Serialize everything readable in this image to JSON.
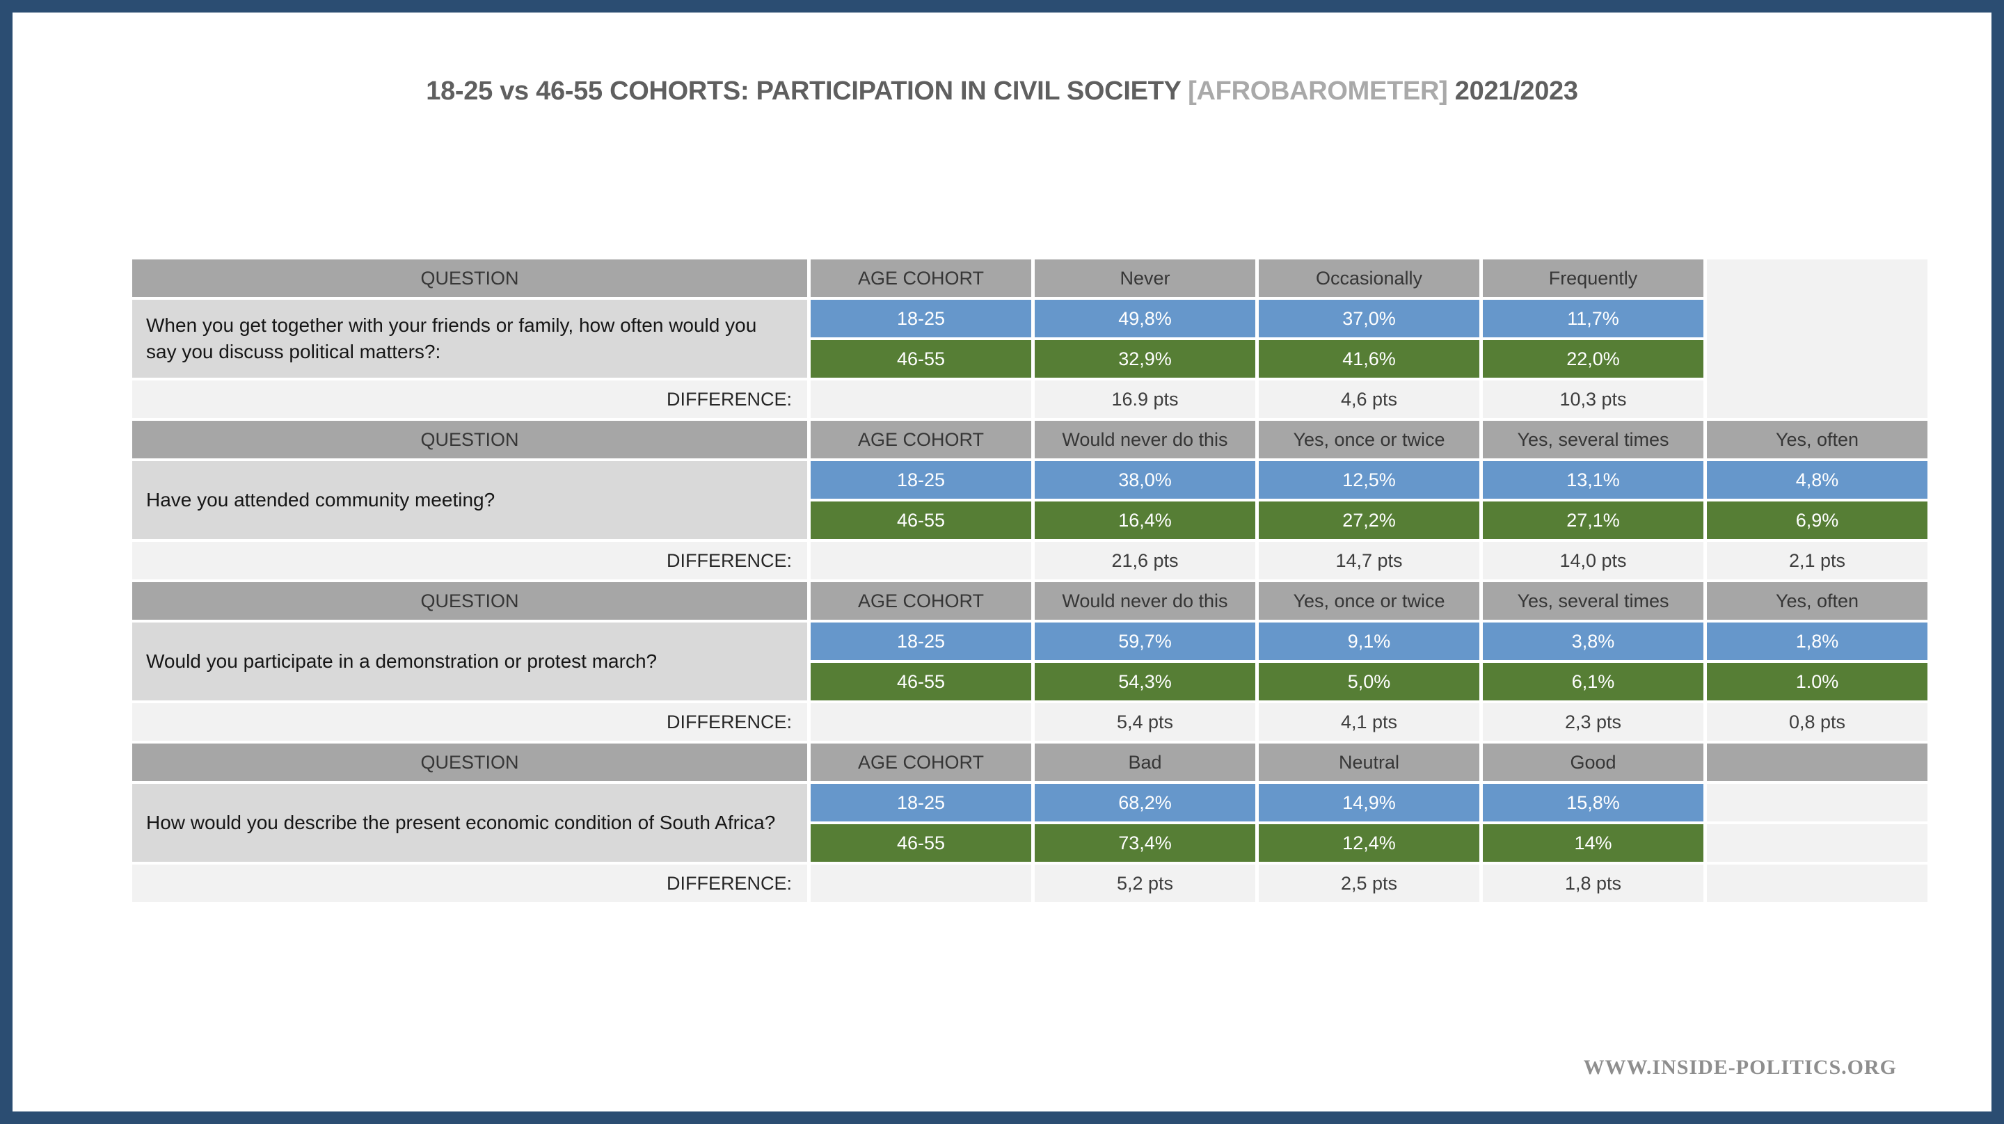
{
  "title": {
    "main": "18-25 vs 46-55 COHORTS: PARTICIPATION IN CIVIL SOCIETY",
    "source": "[AFROBAROMETER]",
    "year": "2021/2023"
  },
  "watermark": "WWW.INSIDE-POLITICS.ORG",
  "labels": {
    "question": "QUESTION",
    "age_cohort": "AGE COHORT",
    "difference": "DIFFERENCE:"
  },
  "colors": {
    "frame_navy": "#2b4d72",
    "header_gray": "#a6a6a6",
    "question_gray": "#d9d9d9",
    "cohort_18_25_blue": "#6697cb",
    "cohort_46_55_green": "#567e35",
    "difference_light": "#f2f2f2"
  },
  "blocks": [
    {
      "question": "When you get together with your friends or family, how often would you say you discuss political matters?:",
      "response_headers": [
        "Never",
        "Occasionally",
        "Frequently"
      ],
      "cohort1": {
        "label": "18-25",
        "values": [
          "49,8%",
          "37,0%",
          "11,7%"
        ]
      },
      "cohort2": {
        "label": "46-55",
        "values": [
          "32,9%",
          "41,6%",
          "22,0%"
        ]
      },
      "difference": [
        "16.9 pts",
        "4,6 pts",
        "10,3 pts"
      ]
    },
    {
      "question": "Have you attended community meeting?",
      "response_headers": [
        "Would never do this",
        "Yes, once or twice",
        "Yes, several times",
        "Yes, often"
      ],
      "cohort1": {
        "label": "18-25",
        "values": [
          "38,0%",
          "12,5%",
          "13,1%",
          "4,8%"
        ]
      },
      "cohort2": {
        "label": "46-55",
        "values": [
          "16,4%",
          "27,2%",
          "27,1%",
          "6,9%"
        ]
      },
      "difference": [
        "21,6 pts",
        "14,7 pts",
        "14,0 pts",
        "2,1 pts"
      ]
    },
    {
      "question": "Would you participate in a demonstration or protest march?",
      "response_headers": [
        "Would never do this",
        "Yes, once or twice",
        "Yes, several times",
        "Yes, often"
      ],
      "cohort1": {
        "label": "18-25",
        "values": [
          "59,7%",
          "9,1%",
          "3,8%",
          "1,8%"
        ]
      },
      "cohort2": {
        "label": "46-55",
        "values": [
          "54,3%",
          "5,0%",
          "6,1%",
          "1.0%"
        ]
      },
      "difference": [
        "5,4 pts",
        "4,1 pts",
        "2,3 pts",
        "0,8 pts"
      ]
    },
    {
      "question": "How would you describe the present economic condition of South Africa?",
      "response_headers": [
        "Bad",
        "Neutral",
        "Good"
      ],
      "cohort1": {
        "label": "18-25",
        "values": [
          "68,2%",
          "14,9%",
          "15,8%"
        ]
      },
      "cohort2": {
        "label": "46-55",
        "values": [
          "73,4%",
          "12,4%",
          "14%"
        ]
      },
      "difference": [
        "5,2 pts",
        "2,5 pts",
        "1,8 pts"
      ]
    }
  ],
  "chart_data": {
    "type": "table",
    "title": "18-25 vs 46-55 COHORTS: PARTICIPATION IN CIVIL SOCIETY [AFROBAROMETER] 2021/2023",
    "tables": [
      {
        "question": "When you get together with your friends or family, how often would you say you discuss political matters?:",
        "categories": [
          "Never",
          "Occasionally",
          "Frequently"
        ],
        "series": [
          {
            "name": "18-25",
            "values": [
              49.8,
              37.0,
              11.7
            ]
          },
          {
            "name": "46-55",
            "values": [
              32.9,
              41.6,
              22.0
            ]
          }
        ],
        "difference_pts": [
          16.9,
          4.6,
          10.3
        ]
      },
      {
        "question": "Have you attended community meeting?",
        "categories": [
          "Would never do this",
          "Yes, once or twice",
          "Yes, several times",
          "Yes, often"
        ],
        "series": [
          {
            "name": "18-25",
            "values": [
              38.0,
              12.5,
              13.1,
              4.8
            ]
          },
          {
            "name": "46-55",
            "values": [
              16.4,
              27.2,
              27.1,
              6.9
            ]
          }
        ],
        "difference_pts": [
          21.6,
          14.7,
          14.0,
          2.1
        ]
      },
      {
        "question": "Would you participate in a demonstration or protest march?",
        "categories": [
          "Would never do this",
          "Yes, once or twice",
          "Yes, several times",
          "Yes, often"
        ],
        "series": [
          {
            "name": "18-25",
            "values": [
              59.7,
              9.1,
              3.8,
              1.8
            ]
          },
          {
            "name": "46-55",
            "values": [
              54.3,
              5.0,
              6.1,
              1.0
            ]
          }
        ],
        "difference_pts": [
          5.4,
          4.1,
          2.3,
          0.8
        ]
      },
      {
        "question": "How would you describe the present economic condition of South Africa?",
        "categories": [
          "Bad",
          "Neutral",
          "Good"
        ],
        "series": [
          {
            "name": "18-25",
            "values": [
              68.2,
              14.9,
              15.8
            ]
          },
          {
            "name": "46-55",
            "values": [
              73.4,
              12.4,
              14.0
            ]
          }
        ],
        "difference_pts": [
          5.2,
          2.5,
          1.8
        ]
      }
    ]
  }
}
